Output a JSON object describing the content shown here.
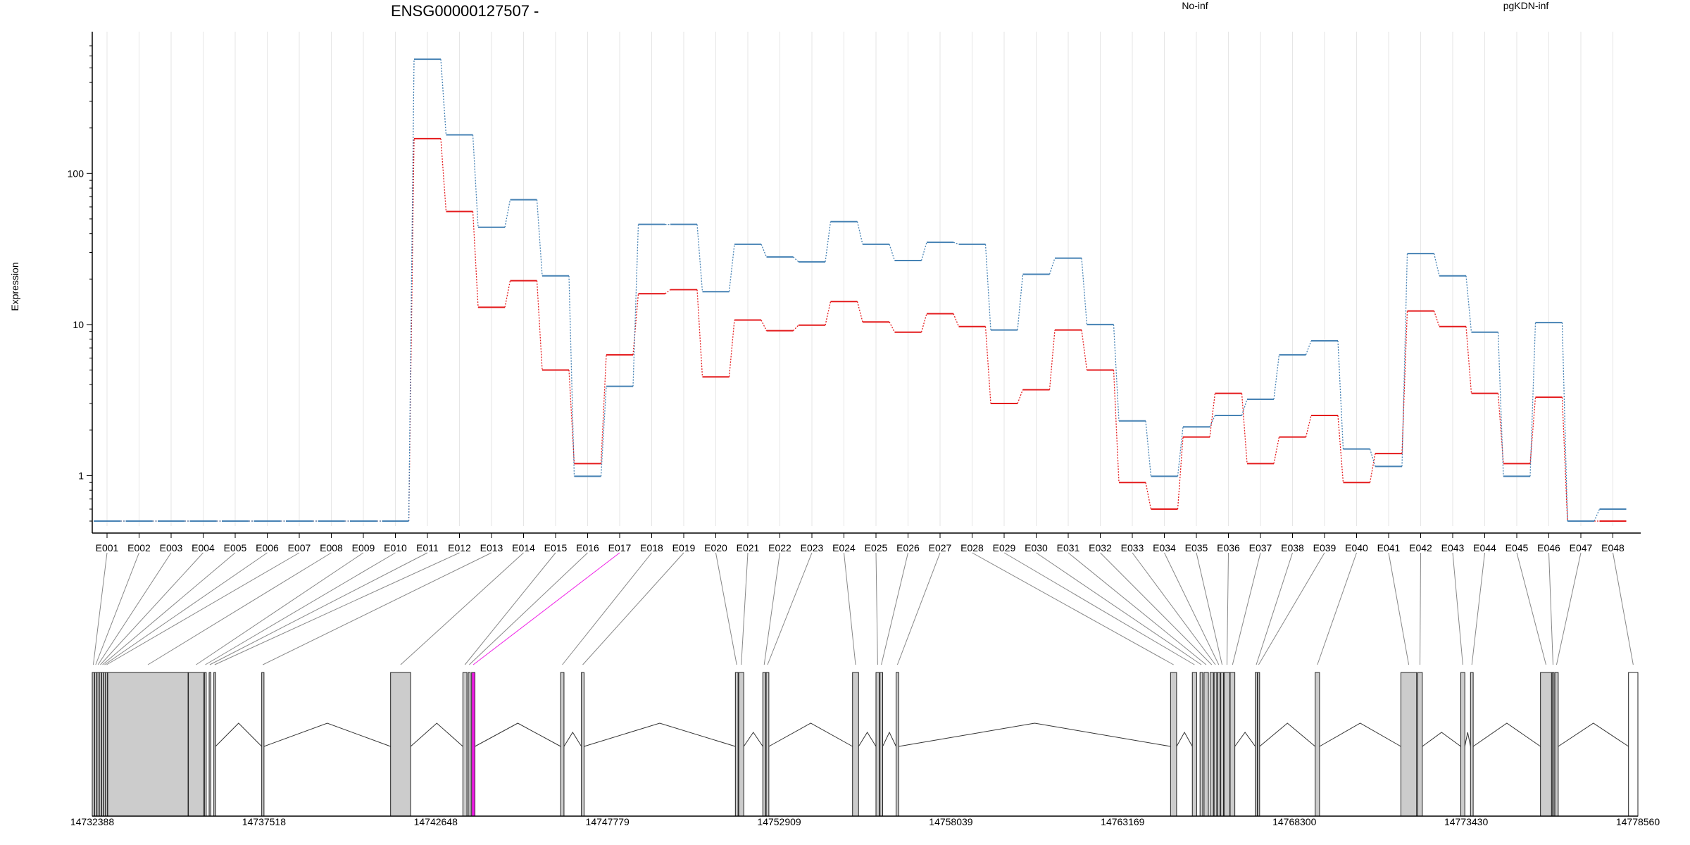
{
  "chart_data": {
    "type": "line",
    "title": "ENSG00000127507 -",
    "ylabel": "Expression",
    "y_scale": "log",
    "ylim": [
      0.5,
      700
    ],
    "yticks": [
      1,
      10,
      100
    ],
    "ytick_labels": [
      "1",
      "10",
      "100"
    ],
    "categories": [
      "E001",
      "E002",
      "E003",
      "E004",
      "E005",
      "E006",
      "E007",
      "E008",
      "E009",
      "E010",
      "E011",
      "E012",
      "E013",
      "E014",
      "E015",
      "E016",
      "E017",
      "E018",
      "E019",
      "E020",
      "E021",
      "E022",
      "E023",
      "E024",
      "E025",
      "E026",
      "E027",
      "E028",
      "E029",
      "E030",
      "E031",
      "E032",
      "E033",
      "E034",
      "E035",
      "E036",
      "E037",
      "E038",
      "E039",
      "E040",
      "E041",
      "E042",
      "E043",
      "E044",
      "E045",
      "E046",
      "E047",
      "E048"
    ],
    "series": [
      {
        "name": "No-inf",
        "color": "#e41a1c",
        "values": [
          0.5,
          0.5,
          0.5,
          0.5,
          0.5,
          0.5,
          0.5,
          0.5,
          0.5,
          0.5,
          170,
          56,
          13,
          19.5,
          5.0,
          1.2,
          6.3,
          16,
          17,
          4.5,
          10.7,
          9.1,
          9.9,
          14.2,
          10.4,
          8.9,
          11.8,
          9.7,
          3.0,
          3.7,
          9.2,
          5.0,
          0.9,
          0.6,
          1.8,
          3.5,
          1.2,
          1.8,
          2.5,
          0.9,
          1.4,
          12.3,
          9.7,
          3.5,
          1.2,
          3.3,
          0.5,
          0.5
        ]
      },
      {
        "name": "pgKDN-inf",
        "color": "#4682b4",
        "values": [
          0.5,
          0.5,
          0.5,
          0.5,
          0.5,
          0.5,
          0.5,
          0.5,
          0.5,
          0.5,
          570,
          180,
          44,
          67,
          21,
          0.99,
          3.9,
          46,
          46,
          16.5,
          34,
          28,
          26,
          48,
          34,
          26.5,
          35,
          34,
          9.2,
          21.5,
          27.5,
          10,
          2.3,
          0.99,
          2.1,
          2.5,
          3.2,
          6.3,
          7.8,
          1.5,
          1.15,
          29.5,
          21,
          8.9,
          0.99,
          10.3,
          0.5,
          0.6
        ]
      }
    ],
    "legend_placement": "top",
    "gene_model": {
      "start": 14732388,
      "end": 14778560,
      "axis_labels": [
        "14732388",
        "14737518",
        "14742648",
        "14747779",
        "14752909",
        "14758039",
        "14763169",
        "14768300",
        "14773430",
        "14778560"
      ],
      "highlighted_exon": "E017",
      "highlight_color": "#f01ee6",
      "exon_fill": "#cccccc",
      "last_exon_fill": "#ffffff",
      "exons": [
        {
          "id": "E001",
          "start": 14732388,
          "end": 14732450
        },
        {
          "id": "E002",
          "start": 14732460,
          "end": 14732520
        },
        {
          "id": "E003",
          "start": 14732530,
          "end": 14732590
        },
        {
          "id": "E004",
          "start": 14732600,
          "end": 14732660
        },
        {
          "id": "E005",
          "start": 14732670,
          "end": 14732720
        },
        {
          "id": "E006",
          "start": 14732730,
          "end": 14732780
        },
        {
          "id": "E007",
          "start": 14732790,
          "end": 14732840
        },
        {
          "id": "E008",
          "start": 14732850,
          "end": 14735250
        },
        {
          "id": "E009",
          "start": 14735260,
          "end": 14735720
        },
        {
          "id": "E010",
          "start": 14735740,
          "end": 14735790
        },
        {
          "id": "E011",
          "start": 14735880,
          "end": 14735920
        },
        {
          "id": "E012",
          "start": 14736020,
          "end": 14736070
        },
        {
          "id": "E013",
          "start": 14737450,
          "end": 14737518
        },
        {
          "id": "E014",
          "start": 14741300,
          "end": 14741900
        },
        {
          "id": "E015",
          "start": 14743460,
          "end": 14743580
        },
        {
          "id": "E016",
          "start": 14743620,
          "end": 14743680
        },
        {
          "id": "E017",
          "start": 14743720,
          "end": 14743820
        },
        {
          "id": "E018",
          "start": 14746380,
          "end": 14746480
        },
        {
          "id": "E019",
          "start": 14747000,
          "end": 14747080
        },
        {
          "id": "E020",
          "start": 14751600,
          "end": 14751680
        },
        {
          "id": "E021",
          "start": 14751700,
          "end": 14751850
        },
        {
          "id": "E022",
          "start": 14752420,
          "end": 14752500
        },
        {
          "id": "E023",
          "start": 14752520,
          "end": 14752600
        },
        {
          "id": "E024",
          "start": 14755100,
          "end": 14755280
        },
        {
          "id": "E025",
          "start": 14755800,
          "end": 14755900
        },
        {
          "id": "E026",
          "start": 14755920,
          "end": 14756000
        },
        {
          "id": "E027",
          "start": 14756400,
          "end": 14756480
        },
        {
          "id": "E028",
          "start": 14764600,
          "end": 14764780
        },
        {
          "id": "E029",
          "start": 14765250,
          "end": 14765380
        },
        {
          "id": "E030",
          "start": 14765480,
          "end": 14765560
        },
        {
          "id": "E031",
          "start": 14765600,
          "end": 14765730
        },
        {
          "id": "E032",
          "start": 14765780,
          "end": 14765880
        },
        {
          "id": "E033",
          "start": 14765900,
          "end": 14765980
        },
        {
          "id": "E034",
          "start": 14766000,
          "end": 14766080
        },
        {
          "id": "E035",
          "start": 14766100,
          "end": 14766180
        },
        {
          "id": "E036",
          "start": 14766200,
          "end": 14766370
        },
        {
          "id": "E037",
          "start": 14766380,
          "end": 14766520
        },
        {
          "id": "E038",
          "start": 14767130,
          "end": 14767190
        },
        {
          "id": "E039",
          "start": 14767200,
          "end": 14767260
        },
        {
          "id": "E040",
          "start": 14768920,
          "end": 14769050
        },
        {
          "id": "E041",
          "start": 14771480,
          "end": 14771950
        },
        {
          "id": "E042",
          "start": 14771980,
          "end": 14772120
        },
        {
          "id": "E043",
          "start": 14773270,
          "end": 14773390
        },
        {
          "id": "E044",
          "start": 14773560,
          "end": 14773640
        },
        {
          "id": "E045",
          "start": 14775650,
          "end": 14775980
        },
        {
          "id": "E046",
          "start": 14776000,
          "end": 14776050
        },
        {
          "id": "E047",
          "start": 14776080,
          "end": 14776180
        },
        {
          "id": "E048",
          "start": 14778280,
          "end": 14778560
        }
      ]
    }
  }
}
